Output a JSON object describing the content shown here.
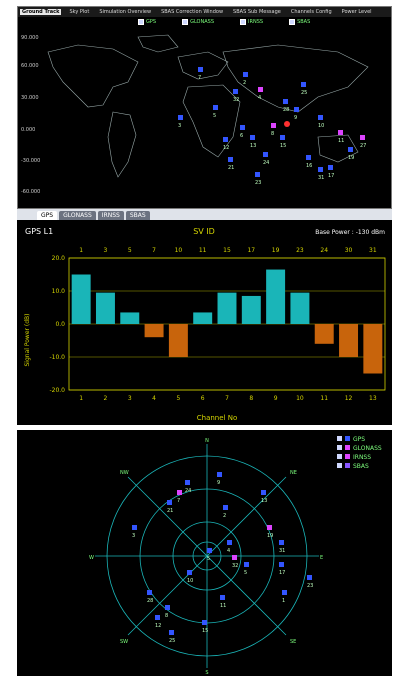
{
  "map_tabs": [
    "Ground Track",
    "Sky Plot",
    "Simulation Overview",
    "SBAS Correction Window",
    "SBAS Sub Message",
    "Channels Config",
    "Power Level"
  ],
  "map_legend": [
    {
      "label": "GPS",
      "color": "#7dff7d"
    },
    {
      "label": "GLONASS",
      "color": "#7dff7d"
    },
    {
      "label": "IRNSS",
      "color": "#7dff7d"
    },
    {
      "label": "SBAS",
      "color": "#7dff7d"
    }
  ],
  "map_lat_labels": [
    "90.000",
    "60.000",
    "30.000",
    "0.000",
    "-30.000",
    "-60.000"
  ],
  "map_satellites": [
    "2",
    "4",
    "5",
    "6",
    "8",
    "9",
    "10",
    "11",
    "12",
    "13",
    "15",
    "16",
    "17",
    "19",
    "21",
    "23",
    "24",
    "25",
    "27",
    "28",
    "31",
    "32",
    "3",
    "7"
  ],
  "bottom_tabs": [
    "GPS",
    "GLONASS",
    "IRNSS",
    "SBAS"
  ],
  "active_bottom_tab": "GPS",
  "chart_data": {
    "type": "bar",
    "title": "SV ID",
    "header_left": "GPS L1",
    "header_right": "Base Power : -130 dBm",
    "top_labels": [
      "1",
      "3",
      "5",
      "7",
      "10",
      "11",
      "15",
      "17",
      "19",
      "23",
      "24",
      "30",
      "31"
    ],
    "categories": [
      "1",
      "2",
      "3",
      "4",
      "5",
      "6",
      "7",
      "8",
      "9",
      "10",
      "11",
      "12",
      "13"
    ],
    "values": [
      15,
      9.5,
      3.5,
      -4,
      -10,
      3.5,
      9.5,
      8.5,
      16.5,
      9.5,
      -6,
      -10,
      -15
    ],
    "xlabel": "Channel No",
    "ylabel": "Signal Power (dB)",
    "ylim": [
      -20,
      20
    ],
    "yticks": [
      "20.0",
      "10.0",
      "0.0",
      "-10.0",
      "-20.0"
    ],
    "colors": {
      "positive": "#1ab5b8",
      "negative": "#c8640c",
      "axis": "#d4d400",
      "background": "#000000"
    }
  },
  "polar": {
    "directions": [
      "N",
      "NE",
      "E",
      "SE",
      "S",
      "SW",
      "W",
      "NW"
    ],
    "legend": [
      {
        "label": "GPS",
        "color": "#7dff7d"
      },
      {
        "label": "GLONASS",
        "color": "#7dff7d"
      },
      {
        "label": "IRNSS",
        "color": "#7dff7d"
      },
      {
        "label": "SBAS",
        "color": "#7dff7d"
      }
    ],
    "sat_labels": [
      "24",
      "9",
      "2",
      "13",
      "21",
      "7",
      "3",
      "31",
      "19",
      "23",
      "17",
      "5",
      "1",
      "11",
      "10",
      "4",
      "5",
      "32",
      "28",
      "8",
      "12",
      "15",
      "25"
    ]
  }
}
